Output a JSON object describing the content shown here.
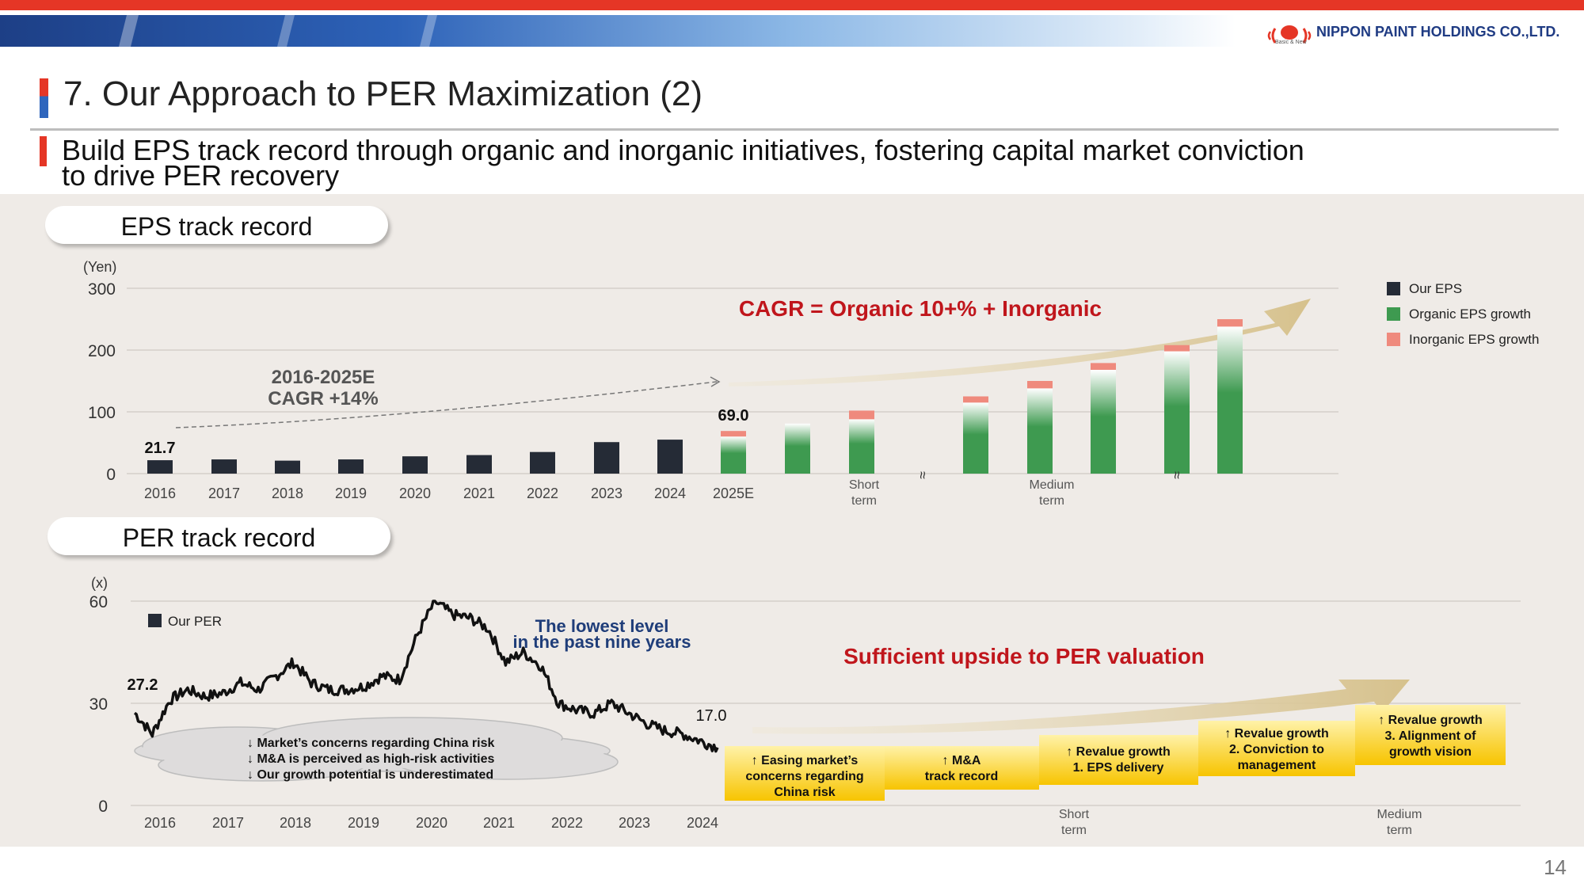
{
  "brand": {
    "company": "NIPPON PAINT HOLDINGS CO.,LTD.",
    "tagline": "Basic & New"
  },
  "slide": {
    "title": "7. Our Approach to PER Maximization (2)",
    "subtitle_line1": "Build EPS track record through organic and inorganic initiatives, fostering capital market conviction",
    "subtitle_line2": "to drive PER recovery",
    "page_number": "14"
  },
  "colors": {
    "brand_red": "#e53626",
    "navy_bar": "#252b36",
    "organic_green": "#3e9a50",
    "inorganic_pink": "#ef8a7d",
    "headline_red": "#c0161c",
    "note_blue": "#1f3d79",
    "arrow_gold": "#d8c595",
    "box_yellow": "#fcd000"
  },
  "eps_section": {
    "heading": "EPS track record",
    "unit": "(Yen)",
    "headline": "CAGR = Organic 10+% + Inorganic",
    "cagr_line1": "2016-2025E",
    "cagr_line2": "CAGR +14%",
    "label_2016": "21.7",
    "label_2025e": "69.0",
    "short_term_line1": "Short",
    "short_term_line2": "term",
    "medium_term_line1": "Medium",
    "medium_term_line2": "term",
    "break_mark": "≈"
  },
  "per_section": {
    "heading": "PER track record",
    "unit": "(x)",
    "legend": "Our PER",
    "start_label": "27.2",
    "end_label": "17.0",
    "lowest_line1": "The lowest level",
    "lowest_line2": "in the past nine years",
    "headline": "Sufficient upside to PER valuation",
    "concerns": [
      "↓ Market’s concerns regarding China risk",
      "↓ M&A is perceived as high-risk activities",
      "↓ Our growth potential is underestimated"
    ],
    "steps": [
      {
        "lines": [
          "↑ Easing market’s",
          "concerns regarding",
          "China risk"
        ]
      },
      {
        "lines": [
          "↑ M&A",
          "track record"
        ]
      },
      {
        "lines": [
          "↑ Revalue growth",
          "1. EPS delivery"
        ]
      },
      {
        "lines": [
          "↑ Revalue growth",
          "2. Conviction to",
          "management"
        ]
      },
      {
        "lines": [
          "↑ Revalue growth",
          "3. Alignment of",
          "growth vision"
        ]
      }
    ],
    "short_term_line1": "Short",
    "short_term_line2": "term",
    "medium_term_line1": "Medium",
    "medium_term_line2": "term"
  },
  "chart_data": [
    {
      "type": "bar",
      "title": "EPS track record",
      "ylabel": "(Yen)",
      "ylim": [
        0,
        300
      ],
      "yticks": [
        "0",
        "100",
        "200",
        "300"
      ],
      "categories": [
        "2016",
        "2017",
        "2018",
        "2019",
        "2020",
        "2021",
        "2022",
        "2023",
        "2024",
        "2025E",
        "",
        "Short term",
        "",
        "",
        "Medium term",
        "",
        "",
        ""
      ],
      "series": [
        {
          "name": "Our EPS",
          "values": [
            21.7,
            23,
            21,
            23,
            28,
            30,
            35,
            51,
            55,
            null,
            null,
            null,
            null,
            null,
            null,
            null,
            null,
            null
          ]
        },
        {
          "name": "Organic EPS growth",
          "values": [
            null,
            null,
            null,
            null,
            null,
            null,
            null,
            null,
            null,
            60,
            81,
            88,
            null,
            115,
            138,
            168,
            198,
            238
          ]
        },
        {
          "name": "Inorganic EPS growth",
          "values": [
            null,
            null,
            null,
            null,
            null,
            null,
            null,
            null,
            null,
            9,
            0,
            14,
            null,
            10,
            12,
            11,
            10,
            12
          ]
        }
      ],
      "legend_position": "right",
      "grid": true
    },
    {
      "type": "line",
      "title": "PER track record",
      "ylabel": "(x)",
      "ylim": [
        0,
        60
      ],
      "yticks": [
        "0",
        "30",
        "60"
      ],
      "x": [
        "2016",
        "2016",
        "2016",
        "2016",
        "2017",
        "2017",
        "2017",
        "2017",
        "2018",
        "2018",
        "2018",
        "2018",
        "2019",
        "2019",
        "2019",
        "2019",
        "2020",
        "2020",
        "2020",
        "2020",
        "2021",
        "2021",
        "2021",
        "2021",
        "2022",
        "2022",
        "2022",
        "2022",
        "2023",
        "2023",
        "2023",
        "2023",
        "2024",
        "2024"
      ],
      "xticks": [
        "2016",
        "2017",
        "2018",
        "2019",
        "2020",
        "2021",
        "2022",
        "2023",
        "2024"
      ],
      "series": [
        {
          "name": "Our PER",
          "values": [
            27.2,
            21,
            31,
            34,
            32,
            33,
            36,
            34,
            38,
            42,
            36,
            34,
            34,
            35,
            38,
            37,
            50,
            60,
            56,
            55,
            52,
            42,
            45,
            41,
            30,
            28,
            27,
            30,
            27,
            24,
            22,
            21,
            19,
            17
          ]
        }
      ]
    }
  ]
}
